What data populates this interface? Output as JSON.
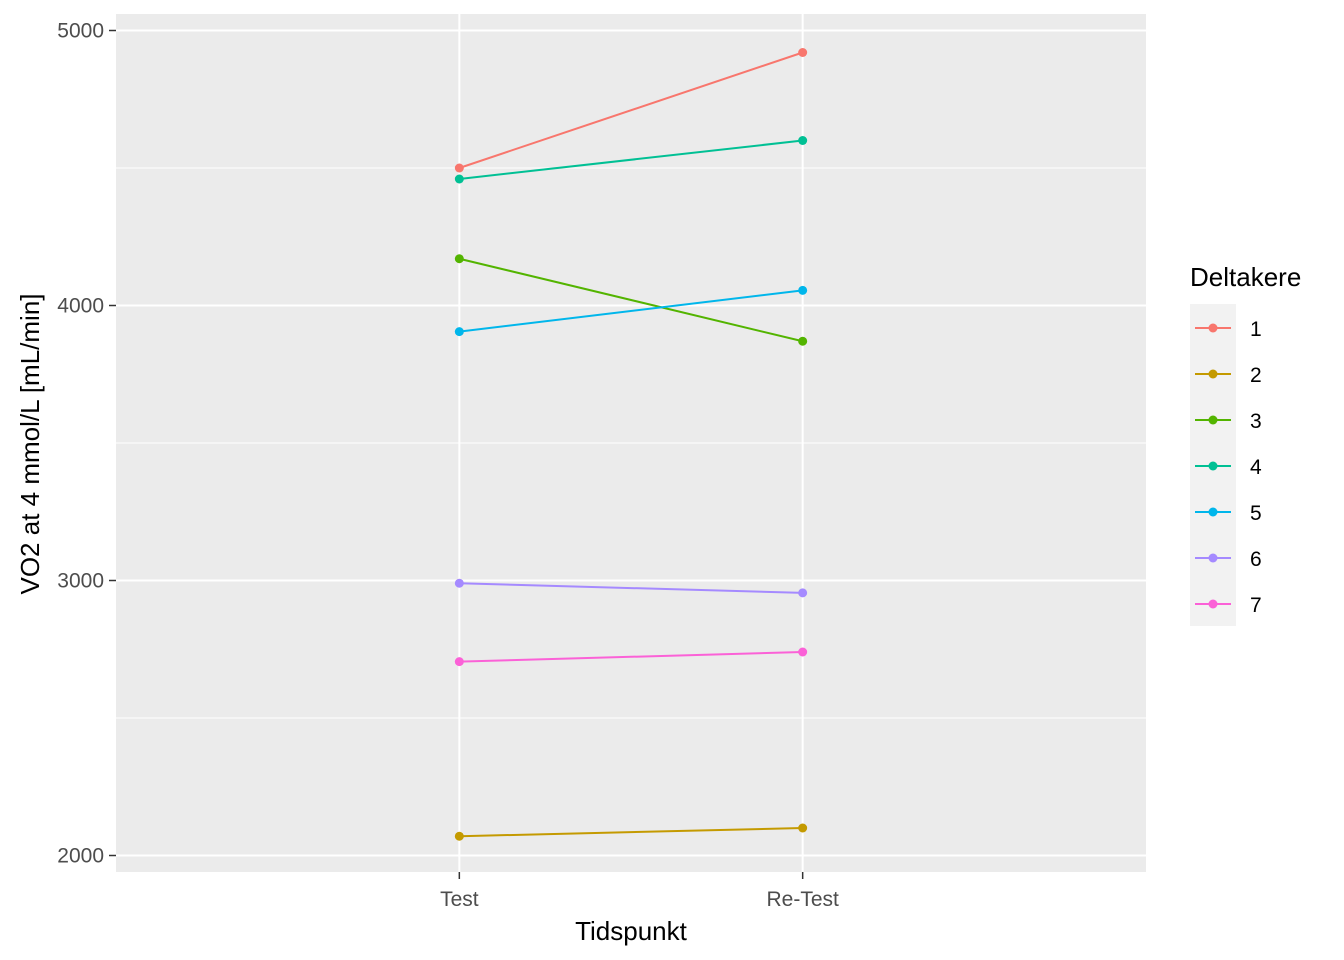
{
  "chart_data": {
    "type": "line",
    "categories": [
      "Test",
      "Re-Test"
    ],
    "xlabel": "Tidspunkt",
    "ylabel": "VO2 at 4 mmol/L [mL/min]",
    "ylim": [
      1940,
      5060
    ],
    "yticks": [
      2000,
      3000,
      4000,
      5000
    ],
    "grid": true,
    "legend": {
      "title": "Deltakere",
      "placement": "right"
    },
    "series": [
      {
        "name": "1",
        "color": "#F8766D",
        "values": [
          4500,
          4920
        ]
      },
      {
        "name": "2",
        "color": "#C49A00",
        "values": [
          2070,
          2100
        ]
      },
      {
        "name": "3",
        "color": "#53B400",
        "values": [
          4170,
          3870
        ]
      },
      {
        "name": "4",
        "color": "#00C094",
        "values": [
          4460,
          4600
        ]
      },
      {
        "name": "5",
        "color": "#00B6EB",
        "values": [
          3905,
          4055
        ]
      },
      {
        "name": "6",
        "color": "#A58AFF",
        "values": [
          2990,
          2955
        ]
      },
      {
        "name": "7",
        "color": "#FB61D7",
        "values": [
          2705,
          2740
        ]
      }
    ]
  }
}
